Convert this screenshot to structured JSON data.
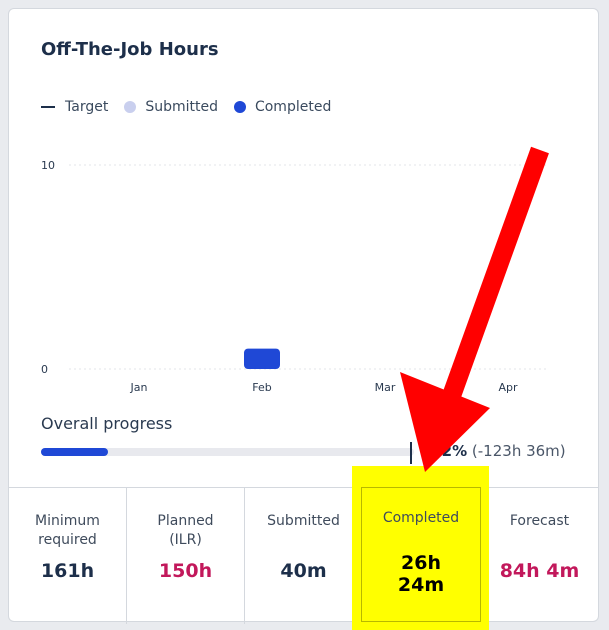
{
  "card": {
    "title": "Off-The-Job Hours"
  },
  "legend": [
    {
      "label": "Target",
      "marker": "line",
      "color": "#1d2f4a"
    },
    {
      "label": "Submitted",
      "marker": "dot",
      "color": "#c9cfee"
    },
    {
      "label": "Completed",
      "marker": "dot",
      "color": "#1f48d6"
    }
  ],
  "chart_data": {
    "type": "bar",
    "categories": [
      "Jan",
      "Feb",
      "Mar",
      "Apr"
    ],
    "series": [
      {
        "name": "Submitted",
        "values": [
          0,
          0,
          0,
          0
        ],
        "color": "#c9cfee"
      },
      {
        "name": "Completed",
        "values": [
          0,
          1,
          0,
          0
        ],
        "color": "#1f48d6"
      }
    ],
    "yticks": [
      "0",
      "10"
    ],
    "ylim": [
      0,
      10
    ],
    "grid": true
  },
  "progress": {
    "label": "Overall progress",
    "fill_fraction": 0.18,
    "delta_bold": "-22%",
    "delta_rest": "(-123h 36m)"
  },
  "stats": [
    {
      "label_lines": [
        "Minimum",
        "required"
      ],
      "value": "161h",
      "value_color": "#1d2f4a"
    },
    {
      "label_lines": [
        "Planned",
        "(ILR)"
      ],
      "value": "150h",
      "value_color": "#c2185b"
    },
    {
      "label_lines": [
        "Submitted"
      ],
      "value": "40m",
      "value_color": "#1d2f4a"
    },
    {
      "label_lines": [
        "Completed"
      ],
      "value_lines": [
        "26h",
        "24m"
      ],
      "value_color": "#000000",
      "highlighted": true
    },
    {
      "label_lines": [
        "Forecast"
      ],
      "value": "84h 4m",
      "value_color": "#c2185b"
    }
  ],
  "annotation": {
    "highlight_color": "#ffff00",
    "arrow_color": "#ff0000"
  }
}
